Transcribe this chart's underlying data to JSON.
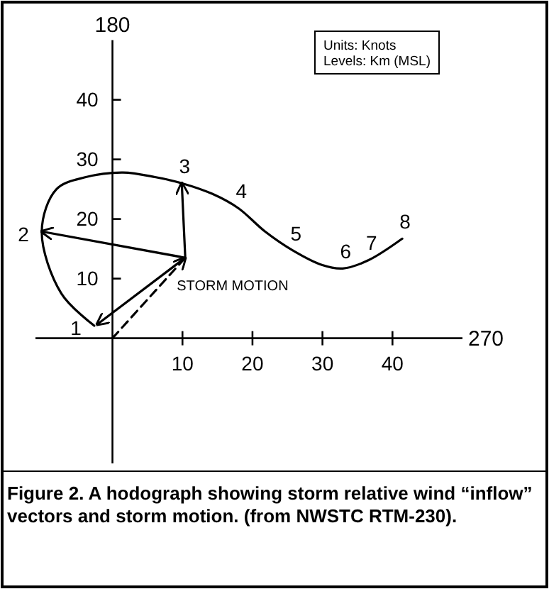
{
  "chart_data": {
    "type": "line",
    "title": "Figure 2. A hodograph showing storm relative wind “inflow” vectors and storm motion. (from NWSTC RTM-230).",
    "xlim": [
      -11,
      50
    ],
    "ylim": [
      -21,
      50
    ],
    "xticks": [
      10,
      20,
      30,
      40
    ],
    "yticks": [
      10,
      20,
      30,
      40
    ],
    "grid": false,
    "marker": "none",
    "line_style": "solid",
    "series": [
      {
        "color": "#000000",
        "x": [
          -2.6,
          -7.3,
          -10.1,
          -8.0,
          -3.9,
          1.5,
          6.2,
          9.9,
          14.3,
          18.0,
          21.8,
          25.8,
          29.9,
          32.9,
          36.6,
          41.4
        ],
        "values": [
          2.1,
          7.5,
          17.9,
          25.0,
          27.0,
          27.8,
          27.0,
          26.0,
          24.2,
          21.8,
          17.9,
          14.7,
          12.3,
          11.7,
          13.1,
          16.7
        ]
      },
      {
        "color": "#000000",
        "x": [
          10.4,
          -2.2
        ],
        "values": [
          13.5,
          2.3
        ]
      },
      {
        "color": "#000000",
        "x": [
          10.4,
          -10.1
        ],
        "values": [
          13.5,
          17.9
        ]
      },
      {
        "color": "#000000",
        "x": [
          10.4,
          9.9
        ],
        "values": [
          13.5,
          26.0
        ]
      },
      {
        "color": "#000000",
        "x": [
          0,
          10.4
        ],
        "values": [
          0,
          13.5
        ],
        "line_style": "dashed"
      }
    ],
    "annotations": [
      "Units: Knots",
      "Levels: Km (MSL)",
      {
        "text": "STORM MOTION",
        "x": 10.4,
        "y": 13.5
      },
      {
        "text": "1",
        "x": -2.6,
        "y": 2.1
      },
      {
        "text": "2",
        "x": -10.1,
        "y": 17.9
      },
      {
        "text": "3",
        "x": 9.9,
        "y": 26.0
      },
      {
        "text": "4",
        "x": 18.0,
        "y": 21.8
      },
      {
        "text": "5",
        "x": 25.8,
        "y": 14.7
      },
      {
        "text": "6",
        "x": 32.9,
        "y": 11.7
      },
      {
        "text": "7",
        "x": 36.6,
        "y": 13.1
      },
      {
        "text": "8",
        "x": 41.4,
        "y": 16.7
      }
    ],
    "xlabel": "270",
    "ylabel": "180"
  }
}
